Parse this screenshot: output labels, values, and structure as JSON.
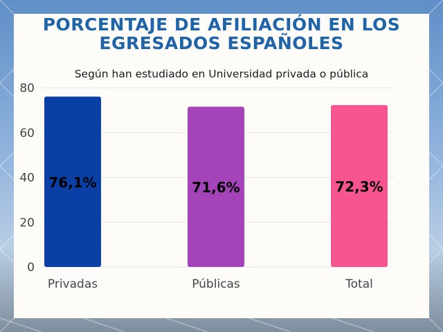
{
  "colors": {
    "title": "#1f64a8",
    "card_background": "#fdfcf8",
    "grid": "#e6e6e6"
  },
  "chart_data": {
    "type": "bar",
    "title": "PORCENTAJE DE AFILIACIÓN EN LOS EGRESADOS ESPAÑOLES",
    "subtitle": "Según han estudiado en Universidad privada o pública",
    "categories": [
      "Privadas",
      "Públicas",
      "Total"
    ],
    "values": [
      76.1,
      71.6,
      72.3
    ],
    "data_labels": [
      "76,1%",
      "71,6%",
      "72,3%"
    ],
    "bar_colors": [
      "#0a40a6",
      "#a444b8",
      "#f75590"
    ],
    "ylim": [
      0,
      80
    ],
    "yticks": [
      0,
      20,
      40,
      60,
      80
    ],
    "grid": true,
    "legend": "none"
  }
}
